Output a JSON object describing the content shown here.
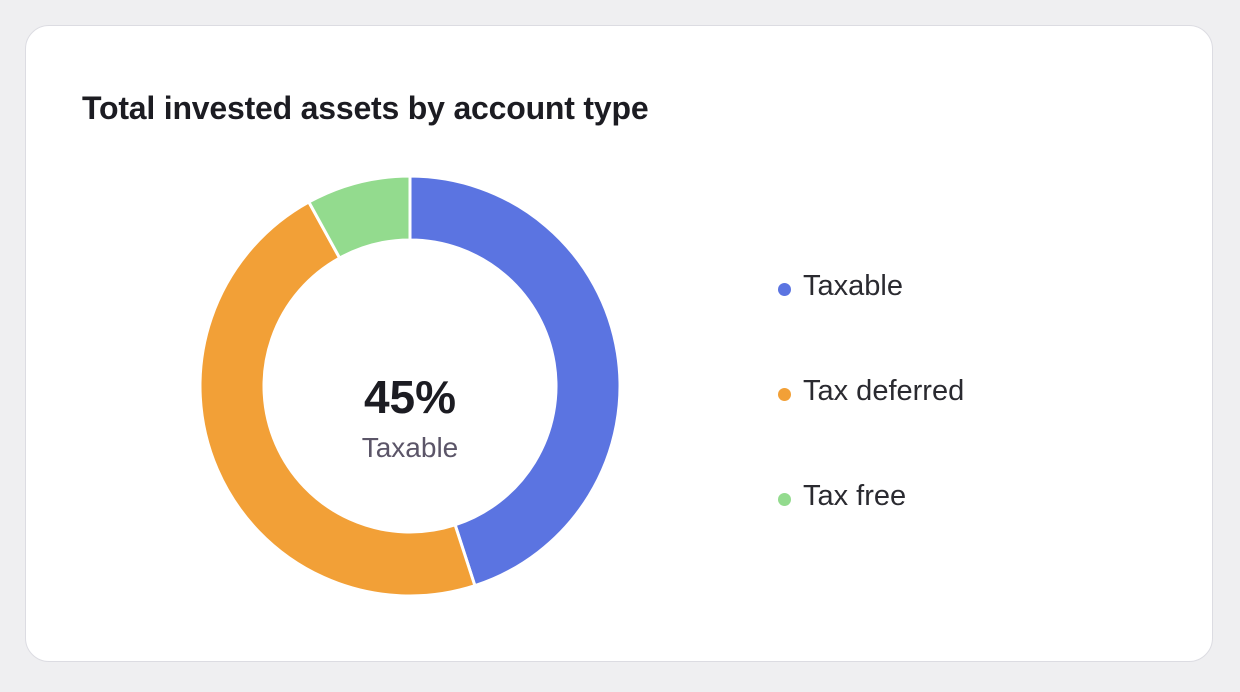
{
  "card": {
    "title": "Total invested assets by account type"
  },
  "center": {
    "value": "45%",
    "label": "Taxable"
  },
  "chart_data": {
    "type": "pie",
    "variant": "donut",
    "title": "Total invested assets by account type",
    "categories": [
      "Taxable",
      "Tax deferred",
      "Tax free"
    ],
    "values": [
      45,
      47,
      8
    ],
    "unit": "%",
    "colors": [
      "#5b74e1",
      "#f2a037",
      "#93db8e"
    ],
    "start_angle_deg": 0,
    "direction": "clockwise",
    "legend": "right"
  }
}
